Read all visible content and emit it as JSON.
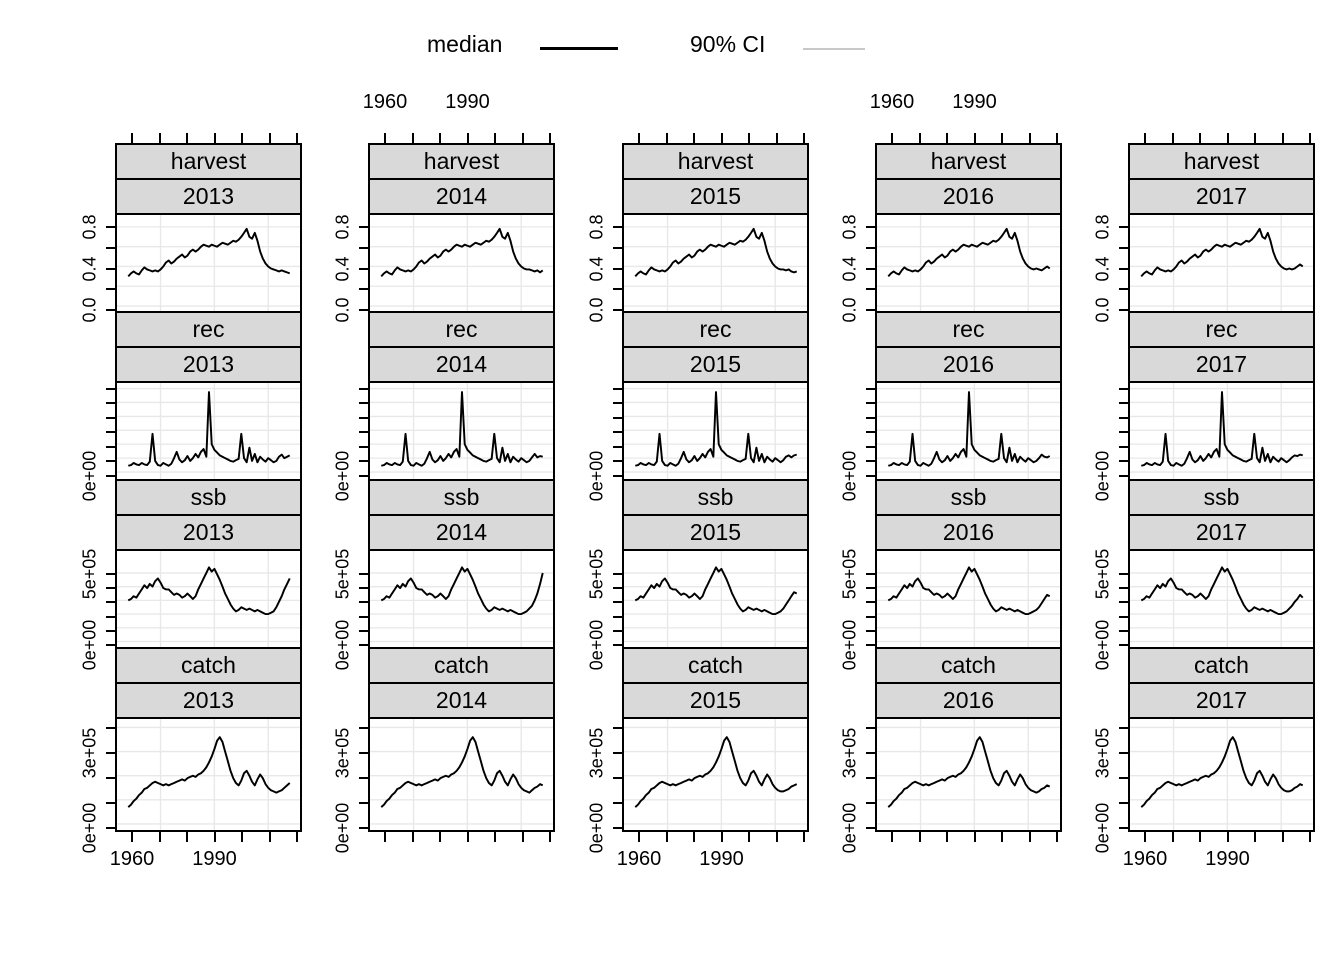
{
  "legend": {
    "items": [
      {
        "label": "median",
        "color": "#000000"
      },
      {
        "label": "90% CI",
        "color": "#c8c8c8"
      }
    ]
  },
  "chart_data": {
    "type": "line",
    "title": "",
    "layout": {
      "grid": "4 rows x 5 columns lattice, shared axes, alternating outer tick labels",
      "gridlines": "on",
      "legend_position": "top"
    },
    "columns": [
      "2013",
      "2014",
      "2015",
      "2016",
      "2017"
    ],
    "strip_variables": [
      "harvest",
      "rec",
      "ssb",
      "catch"
    ],
    "x": {
      "start": 1958,
      "step": 1,
      "ticks": [
        1960,
        1970,
        1980,
        1990,
        2000,
        2010,
        2020
      ],
      "tick_labels": [
        "1960",
        "",
        "",
        "1990",
        "",
        "",
        ""
      ],
      "lim": [
        1954,
        2022
      ],
      "grid_years": [
        1970,
        1990,
        2010
      ],
      "top_labeled_columns": [
        "2014",
        "2016"
      ],
      "bottom_labeled_columns": [
        "2013",
        "2015",
        "2017"
      ]
    },
    "legend": [
      {
        "label": "median",
        "color": "#000000"
      },
      {
        "label": "90% CI",
        "color": "#c8c8c8"
      }
    ],
    "rows": [
      {
        "variable": "harvest",
        "ylim": [
          -0.05,
          0.92
        ],
        "yticks": [
          0,
          0.2,
          0.4,
          0.6,
          0.8
        ],
        "ytick_labels": [
          "0.0",
          "",
          "0.4",
          "",
          "0.8"
        ],
        "values": [
          0.3,
          0.33,
          0.35,
          0.33,
          0.32,
          0.36,
          0.39,
          0.37,
          0.36,
          0.35,
          0.36,
          0.35,
          0.37,
          0.4,
          0.44,
          0.46,
          0.43,
          0.45,
          0.48,
          0.5,
          0.52,
          0.49,
          0.51,
          0.55,
          0.57,
          0.55,
          0.57,
          0.6,
          0.62,
          0.61,
          0.6,
          0.62,
          0.61,
          0.6,
          0.62,
          0.64,
          0.63,
          0.62,
          0.64,
          0.66,
          0.65,
          0.67,
          0.7,
          0.74,
          0.78,
          0.7,
          0.68,
          0.74,
          0.66,
          0.55,
          0.48,
          0.43,
          0.4,
          0.38,
          0.37,
          0.36,
          0.35,
          0.36,
          0.35,
          0.34,
          0.35
        ],
        "column_tails": {
          "2013": [
            0.36,
            0.35,
            0.36,
            0.35,
            0.34,
            0.33
          ],
          "2014": [
            0.37,
            0.36,
            0.35,
            0.36,
            0.34,
            0.36
          ],
          "2015": [
            0.37,
            0.36,
            0.37,
            0.35,
            0.34,
            0.35
          ],
          "2016": [
            0.38,
            0.37,
            0.36,
            0.38,
            0.4,
            0.38
          ],
          "2017": [
            0.38,
            0.37,
            0.38,
            0.4,
            0.42,
            0.4
          ]
        }
      },
      {
        "variable": "rec",
        "ylim": [
          -100000,
          1280000
        ],
        "yticks": [
          0,
          200000,
          400000,
          600000,
          800000,
          1000000,
          1200000
        ],
        "ytick_labels": [
          "0e+00",
          "",
          "",
          "",
          "",
          "",
          ""
        ],
        "values": [
          90000,
          100000,
          130000,
          110000,
          100000,
          130000,
          110000,
          100000,
          150000,
          550000,
          160000,
          100000,
          90000,
          130000,
          110000,
          90000,
          120000,
          200000,
          290000,
          180000,
          140000,
          170000,
          230000,
          160000,
          200000,
          260000,
          210000,
          290000,
          330000,
          220000,
          1150000,
          400000,
          320000,
          280000,
          240000,
          220000,
          200000,
          180000,
          160000,
          150000,
          170000,
          190000,
          550000,
          200000,
          140000,
          350000,
          160000,
          260000,
          140000,
          220000,
          180000,
          150000,
          200000,
          170000,
          140000,
          160000,
          220000,
          250000,
          200000,
          220000,
          240000
        ],
        "column_tails": {
          "2013": [
            160000,
            220000,
            250000,
            200000,
            220000,
            240000
          ],
          "2014": [
            160000,
            210000,
            260000,
            210000,
            230000,
            220000
          ],
          "2015": [
            170000,
            220000,
            240000,
            210000,
            240000,
            250000
          ],
          "2016": [
            160000,
            200000,
            250000,
            220000,
            210000,
            230000
          ],
          "2017": [
            170000,
            210000,
            240000,
            230000,
            250000,
            240000
          ]
        }
      },
      {
        "variable": "ssb",
        "ylim": [
          -40000,
          660000
        ],
        "yticks": [
          0,
          100000,
          200000,
          300000,
          400000,
          500000
        ],
        "ytick_labels": [
          "0e+00",
          "",
          "",
          "",
          "",
          "5e+05"
        ],
        "values": [
          300000,
          310000,
          330000,
          320000,
          350000,
          380000,
          410000,
          390000,
          420000,
          400000,
          440000,
          460000,
          430000,
          390000,
          380000,
          380000,
          360000,
          340000,
          350000,
          340000,
          320000,
          330000,
          350000,
          330000,
          310000,
          330000,
          380000,
          420000,
          460000,
          500000,
          540000,
          510000,
          530000,
          490000,
          450000,
          400000,
          350000,
          310000,
          270000,
          240000,
          220000,
          230000,
          250000,
          240000,
          230000,
          240000,
          230000,
          220000,
          230000,
          220000,
          210000,
          200000,
          200000,
          210000,
          220000,
          250000,
          290000,
          330000,
          380000,
          420000,
          460000
        ],
        "column_tails": {
          "2013": [
            250000,
            290000,
            330000,
            380000,
            420000,
            460000
          ],
          "2014": [
            240000,
            260000,
            300000,
            350000,
            420000,
            500000
          ],
          "2015": [
            240000,
            270000,
            300000,
            330000,
            360000,
            350000
          ],
          "2016": [
            230000,
            250000,
            280000,
            310000,
            340000,
            330000
          ],
          "2017": [
            240000,
            260000,
            290000,
            310000,
            340000,
            320000
          ]
        }
      },
      {
        "variable": "catch",
        "ylim": [
          -25000,
          435000
        ],
        "yticks": [
          0,
          100000,
          200000,
          300000,
          400000
        ],
        "ytick_labels": [
          "0e+00",
          "",
          "",
          "3e+05",
          ""
        ],
        "values": [
          70000,
          80000,
          95000,
          105000,
          120000,
          130000,
          145000,
          150000,
          160000,
          170000,
          175000,
          170000,
          165000,
          160000,
          165000,
          160000,
          165000,
          170000,
          175000,
          180000,
          185000,
          180000,
          190000,
          195000,
          200000,
          195000,
          205000,
          210000,
          220000,
          235000,
          255000,
          280000,
          310000,
          345000,
          360000,
          340000,
          300000,
          260000,
          220000,
          190000,
          170000,
          160000,
          180000,
          210000,
          220000,
          200000,
          175000,
          160000,
          185000,
          205000,
          190000,
          165000,
          150000,
          140000,
          135000,
          130000,
          135000,
          140000,
          150000,
          160000,
          170000
        ],
        "column_tails": {
          "2013": [
            130000,
            135000,
            140000,
            150000,
            160000,
            170000
          ],
          "2014": [
            130000,
            140000,
            150000,
            155000,
            165000,
            160000
          ],
          "2015": [
            135000,
            140000,
            145000,
            155000,
            160000,
            165000
          ],
          "2016": [
            130000,
            135000,
            145000,
            150000,
            160000,
            155000
          ],
          "2017": [
            135000,
            140000,
            150000,
            155000,
            165000,
            160000
          ]
        }
      }
    ]
  },
  "colors": {
    "strip_bg": "#d9d9d9",
    "panel_border": "#000000",
    "gridline": "#e8e8e8",
    "median_line": "#000000",
    "ci_line": "#c8c8c8"
  }
}
